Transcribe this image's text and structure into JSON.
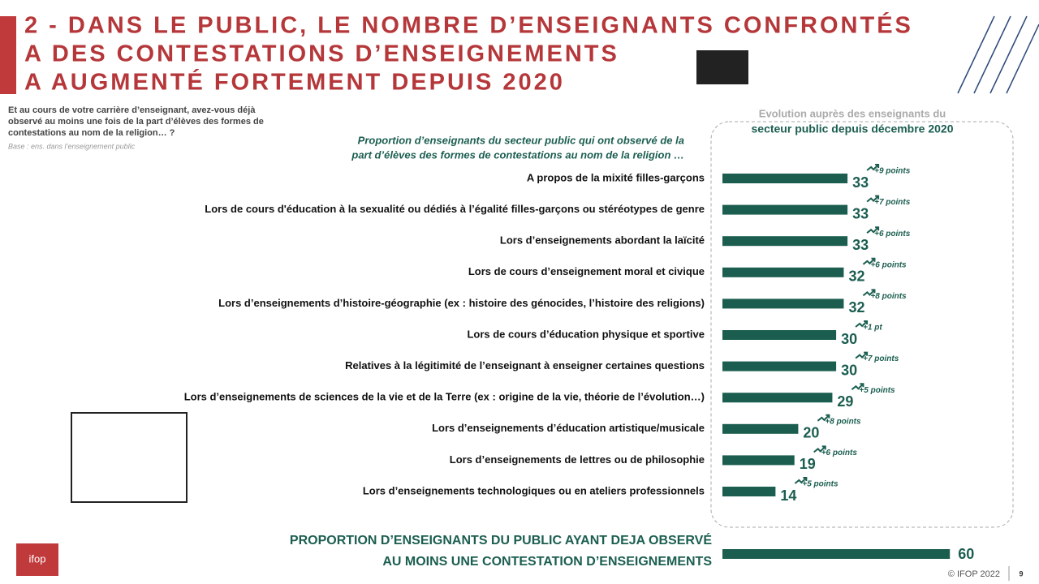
{
  "chart_data": {
    "type": "bar",
    "title": [
      "2 - DANS LE PUBLIC, LE NOMBRE D’ENSEIGNANTS CONFRONTÉS",
      "A DES CONTESTATIONS D’ENSEIGNEMENTS",
      "A AUGMENTÉ FORTEMENT DEPUIS 2020"
    ],
    "question": [
      "Et au cours de votre carrière d’enseignant, avez-vous déjà",
      "observé au moins une fois de la part d’élèves des formes de",
      "contestations au nom de la religion… ?"
    ],
    "base": "Base : ens. dans l’enseignement public",
    "subtitle": [
      "Proportion d’enseignants du secteur public qui ont observé de la",
      "part d’élèves des formes de contestations au nom de la religion …"
    ],
    "evolution_header": [
      "Evolution auprès des enseignants du",
      "secteur public depuis décembre 2020"
    ],
    "categories": [
      "A propos de la mixité filles-garçons",
      "Lors de cours d'éducation à la sexualité ou dédiés à l’égalité filles-garçons ou stéréotypes de genre",
      "Lors d’enseignements abordant la laïcité",
      "Lors de cours d’enseignement moral et civique",
      "Lors d’enseignements d’histoire-géographie (ex : histoire des génocides, l’histoire des religions)",
      "Lors de cours d’éducation physique et sportive",
      "Relatives à la légitimité de l’enseignant à enseigner certaines questions",
      "Lors d’enseignements de sciences de la vie et de la Terre (ex : origine de la vie, théorie de l’évolution…)",
      "Lors d’enseignements d’éducation artistique/musicale",
      "Lors d’enseignements de lettres ou de philosophie",
      "Lors d’enseignements technologiques ou en ateliers professionnels"
    ],
    "values": [
      33,
      33,
      33,
      32,
      32,
      30,
      30,
      29,
      20,
      19,
      14
    ],
    "annotations": [
      "+9 points",
      "+7 points",
      "+6 points",
      "+6 points",
      "+8 points",
      "+1 pt",
      "+7 points",
      "+5 points",
      "+8 points",
      "+6 points",
      "+5 points"
    ],
    "color": "#1b5e50",
    "total": {
      "label": [
        "PROPORTION D’ENSEIGNANTS DU PUBLIC AYANT DEJA OBSERVÉ",
        "AU MOINS UNE CONTESTATION D’ENSEIGNEMENTS"
      ],
      "value": 60
    },
    "logo": "ifop",
    "footer": "© IFOP 2022",
    "page": "9"
  }
}
